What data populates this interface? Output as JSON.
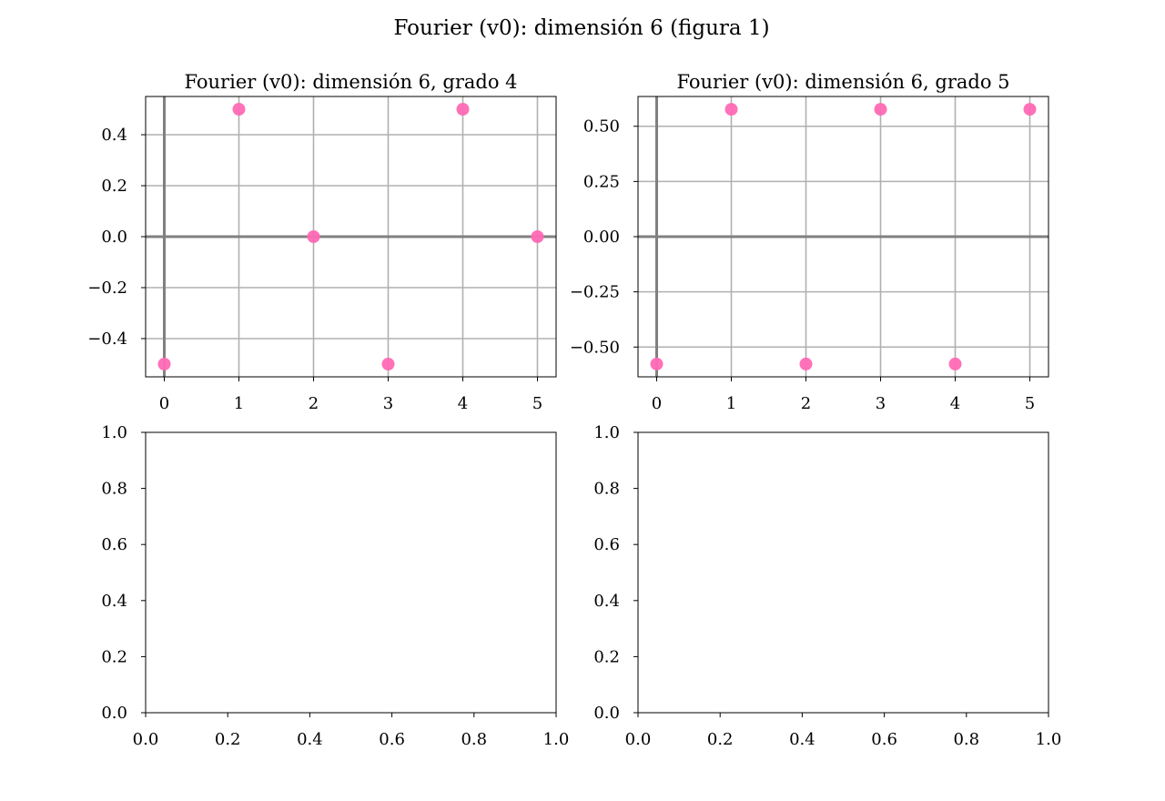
{
  "figure": {
    "title": "Fourier (v0): dimensión 6 (figura 1)"
  },
  "colors": {
    "marker": "#ff69b4",
    "grid": "#b0b0b0",
    "axis_line": "#808080",
    "frame": "#000000"
  },
  "chart_data": [
    {
      "type": "scatter",
      "title": "Fourier (v0): dimensión 6, grado 4",
      "xlabel": "",
      "ylabel": "",
      "x": [
        0,
        1,
        2,
        3,
        4,
        5
      ],
      "y": [
        -0.5,
        0.5,
        0.0,
        -0.5,
        0.5,
        0.0
      ],
      "xlim": [
        -0.25,
        5.25
      ],
      "ylim": [
        -0.55,
        0.55
      ],
      "xticks": [
        0,
        1,
        2,
        3,
        4,
        5
      ],
      "xtick_labels": [
        "0",
        "1",
        "2",
        "3",
        "4",
        "5"
      ],
      "yticks": [
        -0.4,
        -0.2,
        0.0,
        0.2,
        0.4
      ],
      "ytick_labels": [
        "−0.4",
        "−0.2",
        "0.0",
        "0.2",
        "0.4"
      ],
      "grid": true,
      "zero_lines": true
    },
    {
      "type": "scatter",
      "title": "Fourier (v0): dimensión 6, grado 5",
      "xlabel": "",
      "ylabel": "",
      "x": [
        0,
        1,
        2,
        3,
        4,
        5
      ],
      "y": [
        -0.577,
        0.577,
        -0.577,
        0.577,
        -0.577,
        0.577
      ],
      "xlim": [
        -0.25,
        5.25
      ],
      "ylim": [
        -0.635,
        0.635
      ],
      "xticks": [
        0,
        1,
        2,
        3,
        4,
        5
      ],
      "xtick_labels": [
        "0",
        "1",
        "2",
        "3",
        "4",
        "5"
      ],
      "yticks": [
        -0.5,
        -0.25,
        0.0,
        0.25,
        0.5
      ],
      "ytick_labels": [
        "−0.50",
        "−0.25",
        "0.00",
        "0.25",
        "0.50"
      ],
      "grid": true,
      "zero_lines": true
    },
    {
      "type": "scatter",
      "title": "",
      "x": [],
      "y": [],
      "xlim": [
        0,
        1
      ],
      "ylim": [
        0,
        1
      ],
      "xticks": [
        0,
        0.2,
        0.4,
        0.6,
        0.8,
        1.0
      ],
      "xtick_labels": [
        "0.0",
        "0.2",
        "0.4",
        "0.6",
        "0.8",
        "1.0"
      ],
      "yticks": [
        0,
        0.2,
        0.4,
        0.6,
        0.8,
        1.0
      ],
      "ytick_labels": [
        "0.0",
        "0.2",
        "0.4",
        "0.6",
        "0.8",
        "1.0"
      ],
      "grid": false,
      "zero_lines": false
    },
    {
      "type": "scatter",
      "title": "",
      "x": [],
      "y": [],
      "xlim": [
        0,
        1
      ],
      "ylim": [
        0,
        1
      ],
      "xticks": [
        0,
        0.2,
        0.4,
        0.6,
        0.8,
        1.0
      ],
      "xtick_labels": [
        "0.0",
        "0.2",
        "0.4",
        "0.6",
        "0.8",
        "1.0"
      ],
      "yticks": [
        0,
        0.2,
        0.4,
        0.6,
        0.8,
        1.0
      ],
      "ytick_labels": [
        "0.0",
        "0.2",
        "0.4",
        "0.6",
        "0.8",
        "1.0"
      ],
      "grid": false,
      "zero_lines": false
    }
  ]
}
